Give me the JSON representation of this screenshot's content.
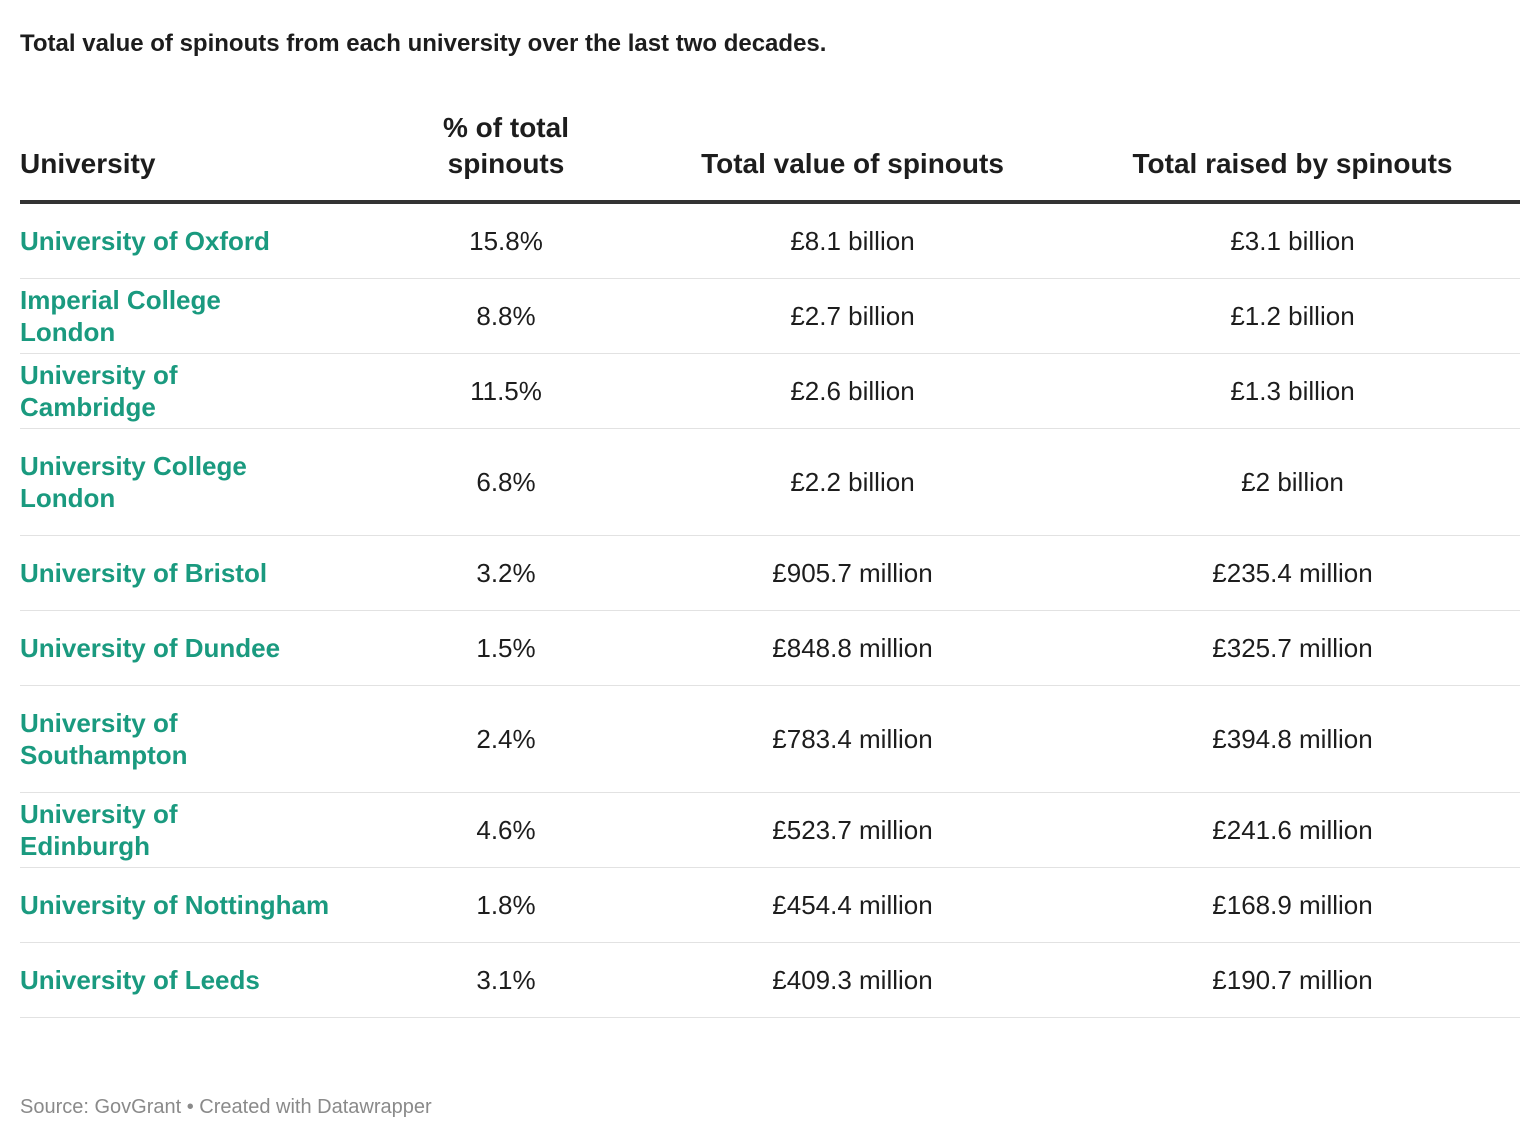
{
  "title": "Total value of spinouts from each university over the last two decades.",
  "colors": {
    "university_name": "#1a9a7f",
    "text": "#1d1d1d",
    "header_rule": "#333333",
    "row_rule": "#e2e2e2",
    "footer": "#8a8a8a"
  },
  "chart_data": {
    "type": "table",
    "title": "Total value of spinouts from each university over the last two decades.",
    "columns": [
      "University",
      "% of total spinouts",
      "Total value of spinouts",
      "Total raised by spinouts"
    ],
    "rows": [
      [
        "University of Oxford",
        "15.8%",
        "£8.1 billion",
        "£3.1 billion"
      ],
      [
        "Imperial College London",
        "8.8%",
        "£2.7 billion",
        "£1.2 billion"
      ],
      [
        "University of Cambridge",
        "11.5%",
        "£2.6 billion",
        "£1.3 billion"
      ],
      [
        "University College London",
        "6.8%",
        "£2.2 billion",
        "£2 billion"
      ],
      [
        "University of Bristol",
        "3.2%",
        "£905.7 million",
        "£235.4 million"
      ],
      [
        "University of Dundee",
        "1.5%",
        "£848.8 million",
        "£325.7 million"
      ],
      [
        "University of Southampton",
        "2.4%",
        "£783.4 million",
        "£394.8 million"
      ],
      [
        "University of Edinburgh",
        "4.6%",
        "£523.7 million",
        "£241.6 million"
      ],
      [
        "University of Nottingham",
        "1.8%",
        "£454.4 million",
        "£168.9 million"
      ],
      [
        "University of Leeds",
        "3.1%",
        "£409.3 million",
        "£190.7 million"
      ]
    ]
  },
  "footer": {
    "source": "Source: GovGrant • Created with Datawrapper"
  }
}
